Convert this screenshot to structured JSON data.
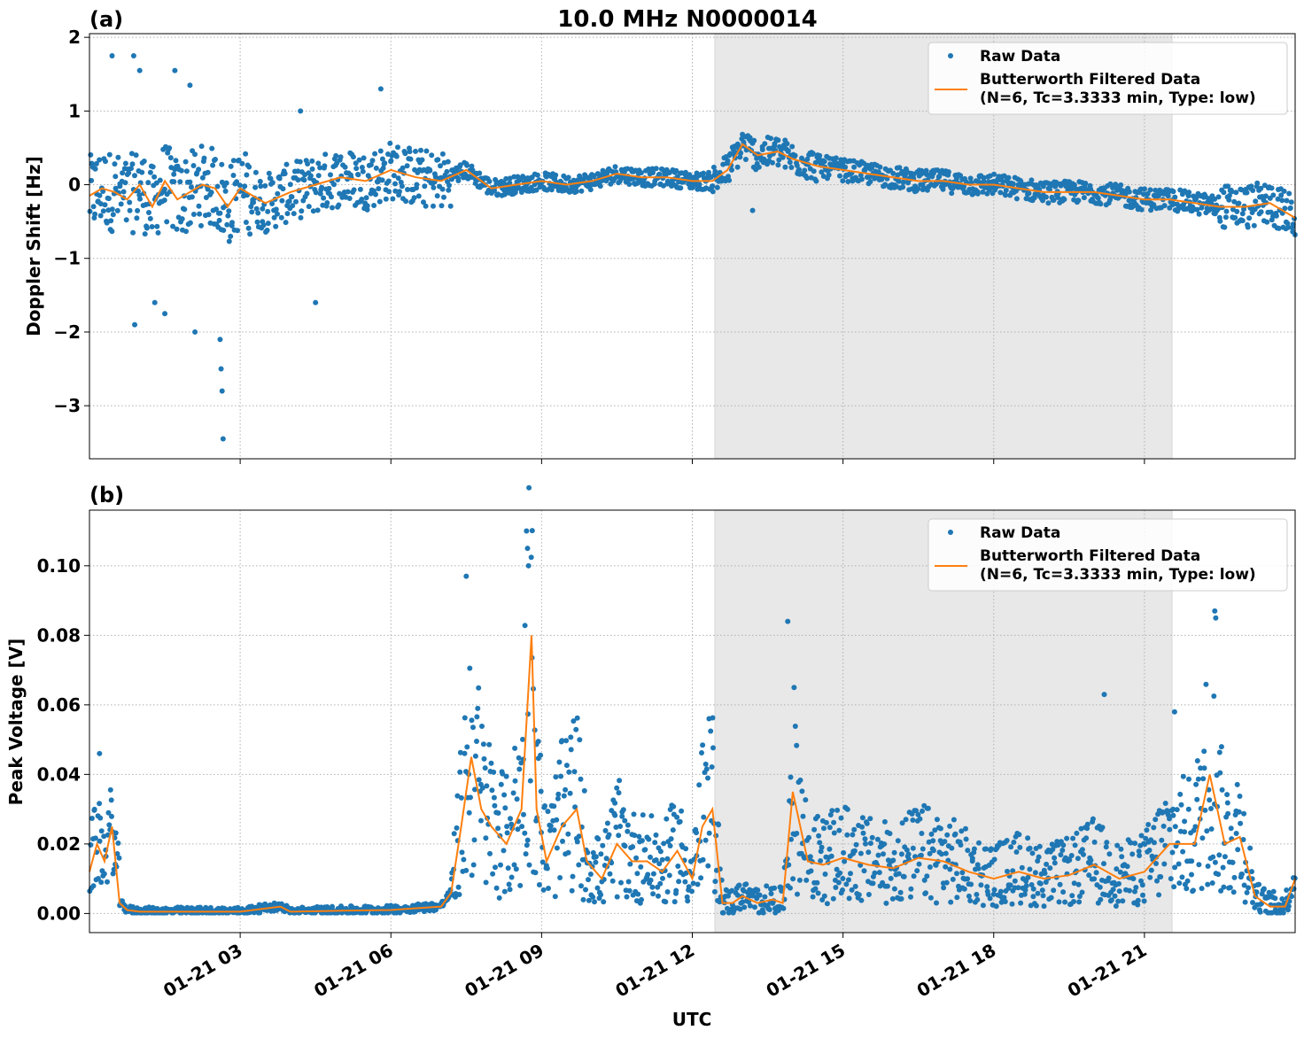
{
  "figure": {
    "title": "10.0 MHz N0000014",
    "xlabel": "UTC",
    "colors": {
      "raw": "#1f77b4",
      "filtered": "#ff7f0e",
      "shade": "#e8e8e8",
      "grid": "#b0b0b0"
    }
  },
  "chart_data": [
    {
      "type": "scatter",
      "panel_label": "(a)",
      "ylabel": "Doppler Shift [Hz]",
      "xlim_hours": [
        0,
        24
      ],
      "ylim": [
        -3.72,
        2.05
      ],
      "y_ticks": [
        2,
        1,
        0,
        -1,
        -2,
        -3
      ],
      "y_tick_labels": [
        "2",
        "1",
        "0",
        "−1",
        "−2",
        "−3"
      ],
      "x_ticks_hours": [
        3,
        6,
        9,
        12,
        15,
        18,
        21
      ],
      "shaded_region_hours": [
        12.45,
        21.55
      ],
      "grid": true,
      "legend_position": "top-right",
      "legend": [
        "Raw Data",
        "Butterworth Filtered Data\n(N=6, Tc=3.3333 min, Type: low)"
      ],
      "series": [
        {
          "name": "Butterworth Filtered Data",
          "x_hours": [
            0,
            0.25,
            0.5,
            0.75,
            1,
            1.25,
            1.5,
            1.75,
            2,
            2.25,
            2.5,
            2.75,
            3,
            3.5,
            4,
            4.5,
            5,
            5.5,
            6,
            6.5,
            7,
            7.5,
            8,
            8.5,
            9,
            9.5,
            10,
            10.5,
            11,
            11.5,
            12,
            12.4,
            12.7,
            13,
            13.3,
            13.7,
            14,
            14.5,
            15,
            15.5,
            16,
            16.5,
            17,
            17.5,
            18,
            18.5,
            19,
            19.5,
            20,
            20.5,
            21,
            21.5,
            22,
            22.5,
            23,
            23.5,
            24
          ],
          "y": [
            -0.15,
            -0.05,
            -0.1,
            -0.2,
            0.0,
            -0.3,
            0.05,
            -0.2,
            -0.1,
            0.0,
            -0.05,
            -0.3,
            -0.05,
            -0.25,
            -0.1,
            0.0,
            0.1,
            0.05,
            0.2,
            0.1,
            0.05,
            0.2,
            -0.05,
            0.0,
            0.05,
            0.0,
            0.05,
            0.15,
            0.1,
            0.1,
            0.05,
            0.05,
            0.2,
            0.55,
            0.4,
            0.45,
            0.35,
            0.25,
            0.2,
            0.15,
            0.1,
            0.05,
            0.05,
            0.0,
            0.0,
            -0.05,
            -0.1,
            -0.1,
            -0.1,
            -0.15,
            -0.2,
            -0.2,
            -0.25,
            -0.3,
            -0.3,
            -0.25,
            -0.45
          ]
        },
        {
          "name": "Raw Data",
          "outliers_x_hours": [
            0.45,
            0.88,
            1.0,
            1.7,
            2.0,
            2.1,
            2.6,
            2.62,
            2.64,
            2.66,
            0.9,
            1.3,
            1.5,
            4.2,
            4.5,
            5.8,
            13.2
          ],
          "outliers_y": [
            1.75,
            1.75,
            1.55,
            1.55,
            1.35,
            -2.0,
            -2.1,
            -2.5,
            -2.8,
            -3.45,
            -1.9,
            -1.6,
            -1.75,
            1.0,
            -1.6,
            1.3,
            -0.35
          ]
        }
      ]
    },
    {
      "type": "scatter",
      "panel_label": "(b)",
      "ylabel": "Peak Voltage [V]",
      "xlim_hours": [
        0,
        24
      ],
      "ylim": [
        -0.0055,
        0.116
      ],
      "y_ticks": [
        0.0,
        0.02,
        0.04,
        0.06,
        0.08,
        0.1
      ],
      "y_tick_labels": [
        "0.00",
        "0.02",
        "0.04",
        "0.06",
        "0.08",
        "0.10"
      ],
      "x_ticks_hours": [
        3,
        6,
        9,
        12,
        15,
        18,
        21
      ],
      "x_tick_labels": [
        "01-21 03",
        "01-21 06",
        "01-21 09",
        "01-21 12",
        "01-21 15",
        "01-21 18",
        "01-21 21"
      ],
      "shaded_region_hours": [
        12.45,
        21.55
      ],
      "grid": true,
      "legend_position": "top-right",
      "legend": [
        "Raw Data",
        "Butterworth Filtered Data\n(N=6, Tc=3.3333 min, Type: low)"
      ],
      "series": [
        {
          "name": "Butterworth Filtered Data",
          "x_hours": [
            0,
            0.15,
            0.3,
            0.45,
            0.6,
            0.75,
            1,
            2,
            3,
            3.8,
            4,
            5,
            6,
            6.5,
            7,
            7.2,
            7.4,
            7.5,
            7.6,
            7.8,
            8,
            8.3,
            8.6,
            8.8,
            8.9,
            9.1,
            9.4,
            9.7,
            9.9,
            10.2,
            10.5,
            10.8,
            11.1,
            11.4,
            11.7,
            12.0,
            12.2,
            12.4,
            12.6,
            12.8,
            13.0,
            13.3,
            13.6,
            13.8,
            14.0,
            14.3,
            14.6,
            15,
            15.5,
            16,
            16.5,
            17,
            17.5,
            18,
            18.5,
            19,
            19.5,
            20,
            20.5,
            21,
            21.5,
            22,
            22.3,
            22.6,
            22.9,
            23.2,
            23.5,
            23.8,
            24
          ],
          "y": [
            0.012,
            0.02,
            0.015,
            0.025,
            0.003,
            0.001,
            0.0005,
            0.0005,
            0.0005,
            0.002,
            0.0005,
            0.0008,
            0.001,
            0.0015,
            0.002,
            0.006,
            0.025,
            0.035,
            0.045,
            0.03,
            0.025,
            0.02,
            0.03,
            0.08,
            0.03,
            0.015,
            0.025,
            0.03,
            0.015,
            0.01,
            0.02,
            0.015,
            0.015,
            0.012,
            0.018,
            0.01,
            0.025,
            0.03,
            0.003,
            0.003,
            0.005,
            0.003,
            0.004,
            0.003,
            0.035,
            0.015,
            0.014,
            0.016,
            0.014,
            0.013,
            0.016,
            0.015,
            0.012,
            0.01,
            0.012,
            0.01,
            0.011,
            0.014,
            0.01,
            0.012,
            0.02,
            0.02,
            0.04,
            0.02,
            0.022,
            0.005,
            0.002,
            0.002,
            0.01
          ]
        },
        {
          "name": "Raw Data",
          "outliers_x_hours": [
            0.2,
            7.5,
            8.7,
            8.72,
            8.74,
            13.9,
            22.4,
            22.42,
            20.2,
            21.6
          ],
          "outliers_y": [
            0.046,
            0.097,
            0.11,
            0.105,
            0.1,
            0.084,
            0.087,
            0.085,
            0.063,
            0.058
          ]
        }
      ]
    }
  ]
}
